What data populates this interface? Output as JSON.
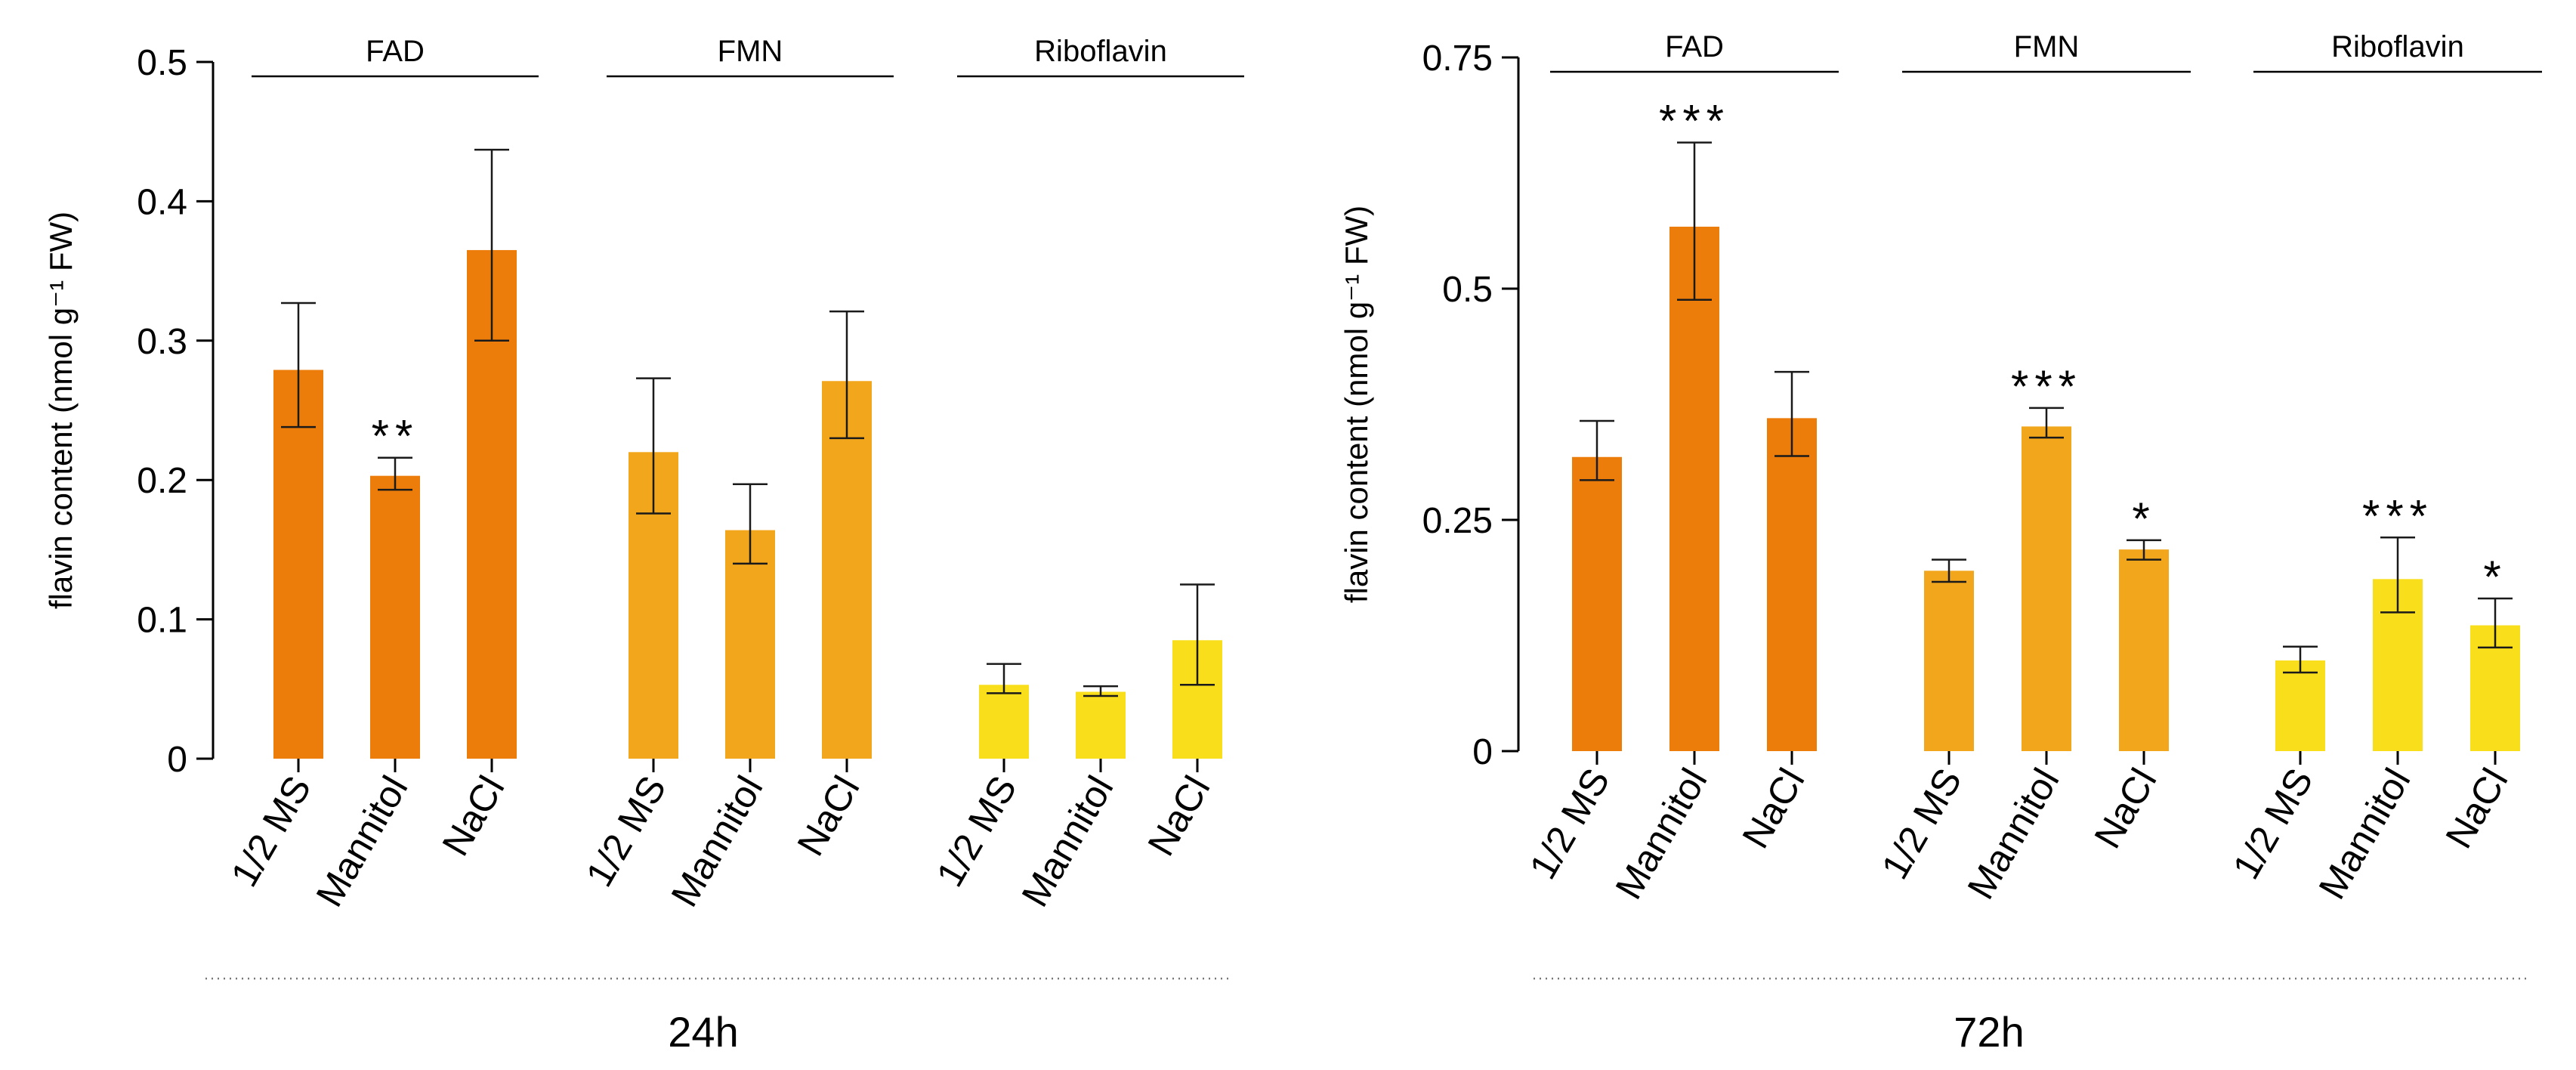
{
  "chart_data": [
    {
      "type": "bar",
      "title": "24h",
      "ylabel": "flavin content (nmol g⁻¹ FW)",
      "ylim": [
        0,
        0.5
      ],
      "yticks": [
        "0",
        "0.1",
        "0.2",
        "0.3",
        "0.4",
        "0.5"
      ],
      "grid": false,
      "categories": [
        "1/2 MS",
        "Mannitol",
        "NaCl"
      ],
      "series": [
        {
          "name": "FAD",
          "color": "#ed7d0a",
          "values": [
            0.279,
            0.203,
            0.365
          ],
          "err_low": [
            0.238,
            0.193,
            0.3
          ],
          "err_high": [
            0.327,
            0.216,
            0.437
          ],
          "significance": [
            "",
            "**",
            ""
          ]
        },
        {
          "name": "FMN",
          "color": "#f2a61c",
          "values": [
            0.22,
            0.164,
            0.271
          ],
          "err_low": [
            0.176,
            0.14,
            0.23
          ],
          "err_high": [
            0.273,
            0.197,
            0.321
          ],
          "significance": [
            "",
            "",
            ""
          ]
        },
        {
          "name": "Riboflavin",
          "color": "#f9df1b",
          "values": [
            0.053,
            0.048,
            0.085
          ],
          "err_low": [
            0.047,
            0.045,
            0.053
          ],
          "err_high": [
            0.068,
            0.052,
            0.125
          ],
          "significance": [
            "",
            "",
            ""
          ]
        }
      ]
    },
    {
      "type": "bar",
      "title": "72h",
      "ylabel": "flavin content (nmol g⁻¹ FW)",
      "ylim": [
        0,
        0.75
      ],
      "yticks": [
        "0",
        "0.25",
        "0.5",
        "0.75"
      ],
      "grid": false,
      "categories": [
        "1/2 MS",
        "Mannitol",
        "NaCl"
      ],
      "series": [
        {
          "name": "FAD",
          "color": "#ed7d0a",
          "values": [
            0.318,
            0.567,
            0.36
          ],
          "err_low": [
            0.293,
            0.488,
            0.319
          ],
          "err_high": [
            0.357,
            0.658,
            0.41
          ],
          "significance": [
            "",
            "***",
            ""
          ]
        },
        {
          "name": "FMN",
          "color": "#f2a61c",
          "values": [
            0.195,
            0.351,
            0.218
          ],
          "err_low": [
            0.183,
            0.339,
            0.207
          ],
          "err_high": [
            0.207,
            0.371,
            0.228
          ],
          "significance": [
            "",
            "***",
            "*"
          ]
        },
        {
          "name": "Riboflavin",
          "color": "#f9df1b",
          "values": [
            0.098,
            0.186,
            0.136
          ],
          "err_low": [
            0.085,
            0.15,
            0.112
          ],
          "err_high": [
            0.113,
            0.231,
            0.165
          ],
          "significance": [
            "",
            "***",
            "*"
          ]
        }
      ]
    }
  ]
}
